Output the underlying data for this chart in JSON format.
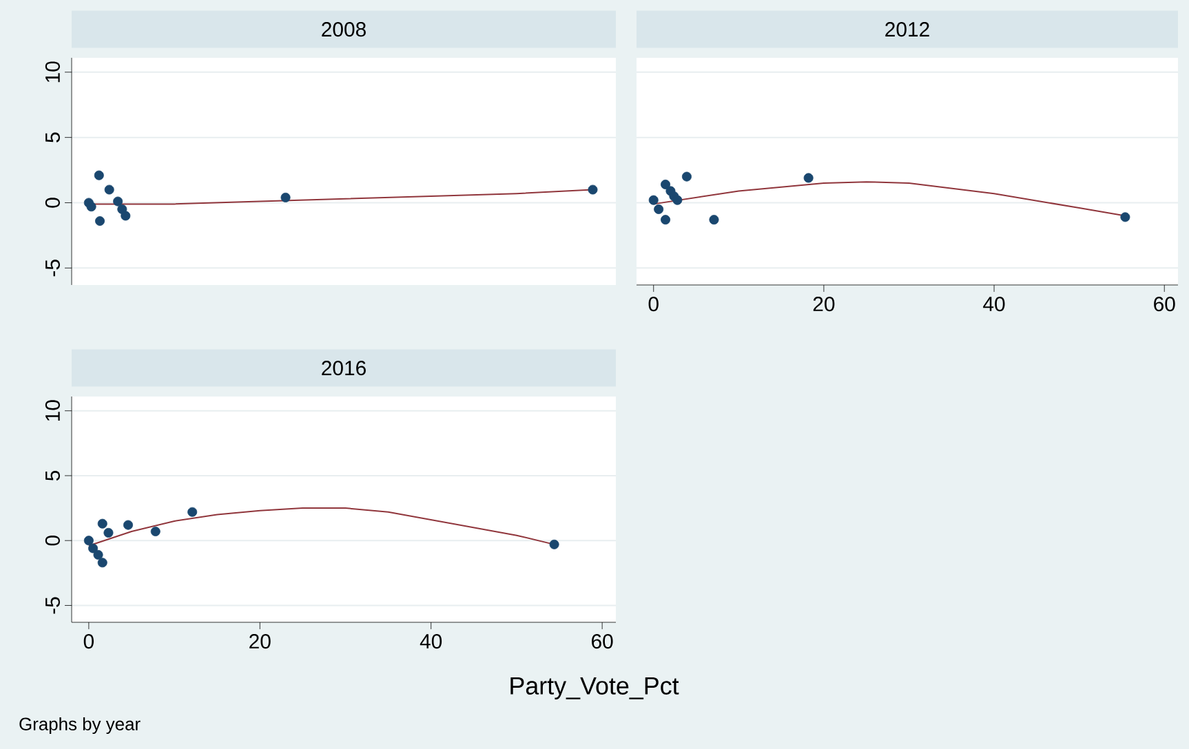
{
  "chart_data": [
    {
      "type": "scatter",
      "title": "2008",
      "xlim": [
        -2,
        61.6
      ],
      "ylim": [
        -6.3,
        11.1
      ],
      "xticks": [
        0,
        20,
        40,
        60
      ],
      "yticks": [
        -5,
        0,
        5,
        10
      ],
      "grid": "y",
      "tick_labels": "y",
      "series": [
        {
          "type": "scatter",
          "marker": "circle",
          "color": "#1a476f",
          "x": [
            0,
            0.3,
            1.2,
            1.3,
            2.4,
            3.4,
            3.9,
            4.3,
            23,
            58.9
          ],
          "values": [
            0,
            -0.3,
            2.1,
            -1.4,
            1.0,
            0.1,
            -0.5,
            -1.0,
            0.4,
            1.0
          ]
        },
        {
          "type": "line",
          "marker": "none",
          "color": "#90353b",
          "x": [
            0,
            10,
            20,
            30,
            40,
            50,
            58.9
          ],
          "values": [
            -0.1,
            -0.1,
            0.1,
            0.3,
            0.5,
            0.7,
            1.0
          ]
        }
      ]
    },
    {
      "type": "scatter",
      "title": "2012",
      "xlim": [
        -2,
        61.6
      ],
      "ylim": [
        -6.3,
        11.1
      ],
      "xticks": [
        0,
        20,
        40,
        60
      ],
      "yticks": [
        -5,
        0,
        5,
        10
      ],
      "grid": "y",
      "tick_labels": "x",
      "series": [
        {
          "type": "scatter",
          "marker": "circle",
          "color": "#1a476f",
          "x": [
            0,
            0.6,
            1.4,
            1.4,
            2.0,
            2.4,
            2.8,
            3.9,
            7.1,
            18.2,
            55.4
          ],
          "values": [
            0.2,
            -0.5,
            -1.3,
            1.4,
            0.9,
            0.5,
            0.2,
            2.0,
            -1.3,
            1.9,
            -1.1
          ]
        },
        {
          "type": "line",
          "marker": "none",
          "color": "#90353b",
          "x": [
            0,
            10,
            20,
            25,
            30,
            40,
            50,
            55.4
          ],
          "values": [
            -0.1,
            0.9,
            1.5,
            1.6,
            1.5,
            0.7,
            -0.4,
            -1.0
          ]
        }
      ]
    },
    {
      "type": "scatter",
      "title": "2016",
      "xlabel": "Party_Vote_Pct",
      "annotations": [
        "Graphs by year"
      ],
      "xlim": [
        -2,
        61.6
      ],
      "ylim": [
        -6.3,
        11.1
      ],
      "xticks": [
        0,
        20,
        40,
        60
      ],
      "yticks": [
        -5,
        0,
        5,
        10
      ],
      "grid": "y",
      "series": [
        {
          "type": "scatter",
          "marker": "circle",
          "color": "#1a476f",
          "x": [
            0,
            0.5,
            1.1,
            1.6,
            1.6,
            2.3,
            4.6,
            7.8,
            12.1,
            54.4
          ],
          "values": [
            0,
            -0.6,
            -1.1,
            -1.7,
            1.3,
            0.6,
            1.2,
            0.7,
            2.2,
            -0.3
          ]
        },
        {
          "type": "line",
          "marker": "none",
          "color": "#90353b",
          "x": [
            0,
            5,
            10,
            15,
            20,
            25,
            30,
            35,
            40,
            45,
            50,
            54.4
          ],
          "values": [
            -0.4,
            0.7,
            1.5,
            2.0,
            2.3,
            2.5,
            2.5,
            2.2,
            1.6,
            1.0,
            0.4,
            -0.3
          ]
        }
      ]
    }
  ]
}
